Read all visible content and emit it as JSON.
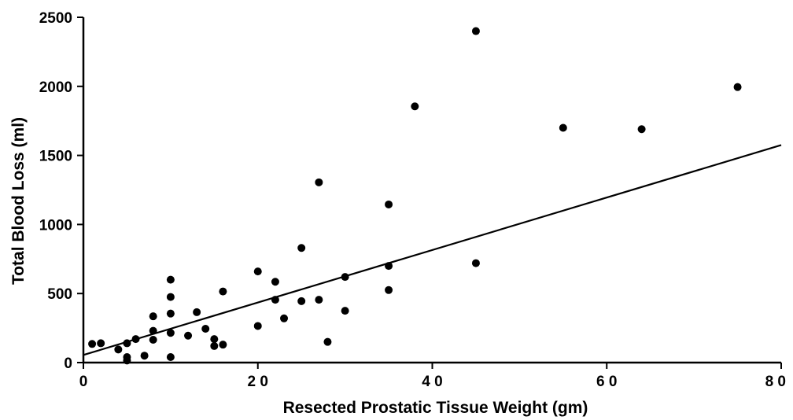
{
  "chart_data": {
    "type": "scatter",
    "xlabel": "Resected Prostatic Tissue Weight (gm)",
    "ylabel": "Total Blood Loss (ml)",
    "xlim": [
      0,
      80
    ],
    "ylim": [
      0,
      2500
    ],
    "x_ticks": [
      0,
      20,
      40,
      60,
      80
    ],
    "y_ticks": [
      0,
      500,
      1000,
      1500,
      2000,
      2500
    ],
    "x_tick_labels": [
      "0",
      "2 0",
      "4 0",
      "6 0",
      "8 0"
    ],
    "y_tick_labels": [
      "0",
      "500",
      "1000",
      "1500",
      "2000",
      "2500"
    ],
    "grid": false,
    "points": [
      {
        "x": 1,
        "y": 135
      },
      {
        "x": 2,
        "y": 140
      },
      {
        "x": 4,
        "y": 95
      },
      {
        "x": 5,
        "y": 140
      },
      {
        "x": 5,
        "y": 40
      },
      {
        "x": 5,
        "y": 15
      },
      {
        "x": 6,
        "y": 170
      },
      {
        "x": 7,
        "y": 50
      },
      {
        "x": 8,
        "y": 335
      },
      {
        "x": 8,
        "y": 230
      },
      {
        "x": 8,
        "y": 165
      },
      {
        "x": 10,
        "y": 600
      },
      {
        "x": 10,
        "y": 475
      },
      {
        "x": 10,
        "y": 355
      },
      {
        "x": 10,
        "y": 215
      },
      {
        "x": 10,
        "y": 40
      },
      {
        "x": 12,
        "y": 195
      },
      {
        "x": 13,
        "y": 365
      },
      {
        "x": 14,
        "y": 245
      },
      {
        "x": 15,
        "y": 170
      },
      {
        "x": 15,
        "y": 120
      },
      {
        "x": 16,
        "y": 515
      },
      {
        "x": 16,
        "y": 130
      },
      {
        "x": 20,
        "y": 660
      },
      {
        "x": 20,
        "y": 265
      },
      {
        "x": 22,
        "y": 585
      },
      {
        "x": 22,
        "y": 455
      },
      {
        "x": 23,
        "y": 320
      },
      {
        "x": 25,
        "y": 830
      },
      {
        "x": 25,
        "y": 445
      },
      {
        "x": 27,
        "y": 1305
      },
      {
        "x": 27,
        "y": 455
      },
      {
        "x": 28,
        "y": 150
      },
      {
        "x": 30,
        "y": 620
      },
      {
        "x": 30,
        "y": 375
      },
      {
        "x": 35,
        "y": 1145
      },
      {
        "x": 35,
        "y": 700
      },
      {
        "x": 35,
        "y": 525
      },
      {
        "x": 38,
        "y": 1855
      },
      {
        "x": 45,
        "y": 2400
      },
      {
        "x": 45,
        "y": 720
      },
      {
        "x": 55,
        "y": 1700
      },
      {
        "x": 64,
        "y": 1690
      },
      {
        "x": 75,
        "y": 1995
      }
    ],
    "regression_line": {
      "x1": 0,
      "y1": 55,
      "x2": 80,
      "y2": 1575
    }
  }
}
